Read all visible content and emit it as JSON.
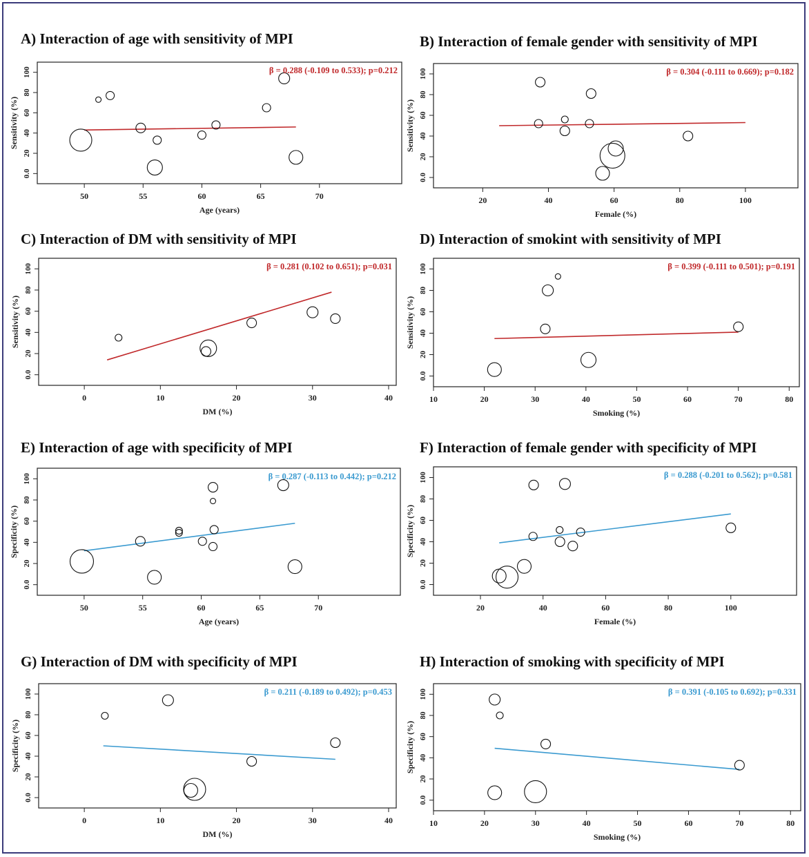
{
  "chart_data": [
    {
      "id": "A",
      "type": "scatter",
      "title": "A) Interaction of age with sensitivity of MPI",
      "xlabel": "Age (years)",
      "ylabel": "Sensitivity (%)",
      "xlim": [
        46,
        77
      ],
      "ylim": [
        -10,
        110
      ],
      "xticks": [
        50,
        55,
        60,
        65,
        70
      ],
      "xtick_labels": [
        "50",
        "55",
        "60",
        "65",
        "70"
      ],
      "yticks": [
        0,
        20,
        40,
        60,
        80,
        100
      ],
      "ytick_labels": [
        "0.0",
        "20",
        "40",
        "60",
        "80",
        "100"
      ],
      "annotation": "β = 0.288 (-0.109 to 0.533); p=0.212",
      "line_color": "#c0282a",
      "fit_line": {
        "x": [
          50,
          68
        ],
        "y": [
          43,
          46
        ]
      },
      "points": [
        {
          "x": 49.7,
          "y": 33,
          "r": 16
        },
        {
          "x": 51.2,
          "y": 73,
          "r": 4
        },
        {
          "x": 52.2,
          "y": 77,
          "r": 6
        },
        {
          "x": 54.8,
          "y": 45,
          "r": 7
        },
        {
          "x": 56.0,
          "y": 6,
          "r": 11
        },
        {
          "x": 56.2,
          "y": 33,
          "r": 6
        },
        {
          "x": 60.0,
          "y": 38,
          "r": 6
        },
        {
          "x": 61.2,
          "y": 48,
          "r": 6
        },
        {
          "x": 65.5,
          "y": 65,
          "r": 6
        },
        {
          "x": 67.0,
          "y": 94,
          "r": 8
        },
        {
          "x": 68.0,
          "y": 16,
          "r": 10
        }
      ]
    },
    {
      "id": "B",
      "type": "scatter",
      "title": "B) Interaction of female gender with sensitivity of MPI",
      "xlabel": "Female (%)",
      "ylabel": "Sensitivity (%)",
      "xlim": [
        5,
        116
      ],
      "ylim": [
        -10,
        110
      ],
      "xticks": [
        20,
        40,
        60,
        80,
        100
      ],
      "xtick_labels": [
        "20",
        "40",
        "60",
        "80",
        "100"
      ],
      "yticks": [
        0,
        20,
        40,
        60,
        80,
        100
      ],
      "ytick_labels": [
        "0.0",
        "20",
        "40",
        "60",
        "80",
        "100"
      ],
      "annotation": "β = 0.304 (-0.111 to 0.669); p=0.182",
      "line_color": "#c0282a",
      "fit_line": {
        "x": [
          25,
          100
        ],
        "y": [
          50,
          53
        ]
      },
      "points": [
        {
          "x": 37.5,
          "y": 92,
          "r": 7
        },
        {
          "x": 37.0,
          "y": 52,
          "r": 6
        },
        {
          "x": 45.0,
          "y": 56,
          "r": 5
        },
        {
          "x": 45.0,
          "y": 45,
          "r": 7
        },
        {
          "x": 53.0,
          "y": 81,
          "r": 7
        },
        {
          "x": 52.5,
          "y": 52,
          "r": 6
        },
        {
          "x": 59.5,
          "y": 21,
          "r": 18
        },
        {
          "x": 60.5,
          "y": 28,
          "r": 11
        },
        {
          "x": 56.5,
          "y": 4,
          "r": 10
        },
        {
          "x": 82.5,
          "y": 40,
          "r": 7
        }
      ]
    },
    {
      "id": "C",
      "type": "scatter",
      "title": "C) Interaction of DM with sensitivity of MPI",
      "xlabel": "DM (%)",
      "ylabel": "Sensitivity (%)",
      "xlim": [
        -6,
        41
      ],
      "ylim": [
        -10,
        110
      ],
      "xticks": [
        0,
        10,
        20,
        30,
        40
      ],
      "xtick_labels": [
        "0",
        "10",
        "20",
        "30",
        "40"
      ],
      "yticks": [
        0,
        20,
        40,
        60,
        80,
        100
      ],
      "ytick_labels": [
        "0.0",
        "20",
        "40",
        "60",
        "80",
        "100"
      ],
      "annotation": "β = 0.281 (0.102 to 0.651); p=0.031",
      "line_color": "#c0282a",
      "fit_line": {
        "x": [
          3,
          32.5
        ],
        "y": [
          14,
          78
        ]
      },
      "points": [
        {
          "x": 4.5,
          "y": 35,
          "r": 5
        },
        {
          "x": 16.3,
          "y": 25,
          "r": 12
        },
        {
          "x": 16.0,
          "y": 22,
          "r": 7
        },
        {
          "x": 22.0,
          "y": 49,
          "r": 7
        },
        {
          "x": 30.0,
          "y": 59,
          "r": 8
        },
        {
          "x": 33.0,
          "y": 53,
          "r": 7
        }
      ]
    },
    {
      "id": "D",
      "type": "scatter",
      "title": "D) Interaction of smokint with sensitivity of MPI",
      "xlabel": "Smoking (%)",
      "ylabel": "Sensitivity (%)",
      "xlim": [
        10,
        82
      ],
      "ylim": [
        -10,
        110
      ],
      "xticks": [
        10,
        20,
        30,
        40,
        50,
        60,
        70,
        80
      ],
      "xtick_labels": [
        "10",
        "20",
        "30",
        "40",
        "50",
        "60",
        "70",
        "80"
      ],
      "yticks": [
        0,
        20,
        40,
        60,
        80,
        100
      ],
      "ytick_labels": [
        "0.0",
        "20",
        "40",
        "60",
        "80",
        "100"
      ],
      "annotation": "β = 0.399 (-0.111 to 0.501); p=0.191",
      "line_color": "#c0282a",
      "fit_line": {
        "x": [
          22,
          70
        ],
        "y": [
          35,
          41
        ]
      },
      "points": [
        {
          "x": 34.5,
          "y": 93,
          "r": 4
        },
        {
          "x": 32.5,
          "y": 80,
          "r": 8
        },
        {
          "x": 32.0,
          "y": 44,
          "r": 7
        },
        {
          "x": 22.0,
          "y": 6,
          "r": 10
        },
        {
          "x": 40.5,
          "y": 15,
          "r": 11
        },
        {
          "x": 70.0,
          "y": 46,
          "r": 7
        }
      ]
    },
    {
      "id": "E",
      "type": "scatter",
      "title": "E) Interaction of age with specificity of MPI",
      "xlabel": "Age (years)",
      "ylabel": "Specificity (%)",
      "xlim": [
        46,
        77
      ],
      "ylim": [
        -10,
        110
      ],
      "xticks": [
        50,
        55,
        60,
        65,
        70
      ],
      "xtick_labels": [
        "50",
        "55",
        "60",
        "65",
        "70"
      ],
      "yticks": [
        0,
        20,
        40,
        60,
        80,
        100
      ],
      "ytick_labels": [
        "0.0",
        "20",
        "40",
        "60",
        "80",
        "100"
      ],
      "annotation": "β = 0.287 (-0.113 to 0.442); p=0.212",
      "line_color": "#3a9ad0",
      "fit_line": {
        "x": [
          50,
          68
        ],
        "y": [
          32,
          58
        ]
      },
      "points": [
        {
          "x": 49.8,
          "y": 22,
          "r": 17
        },
        {
          "x": 54.8,
          "y": 41,
          "r": 7
        },
        {
          "x": 56.0,
          "y": 7,
          "r": 10
        },
        {
          "x": 58.1,
          "y": 51,
          "r": 5
        },
        {
          "x": 58.1,
          "y": 49,
          "r": 5
        },
        {
          "x": 60.1,
          "y": 41,
          "r": 6
        },
        {
          "x": 61.0,
          "y": 92,
          "r": 7
        },
        {
          "x": 61.0,
          "y": 79,
          "r": 4
        },
        {
          "x": 61.1,
          "y": 52,
          "r": 6
        },
        {
          "x": 61.0,
          "y": 36,
          "r": 6
        },
        {
          "x": 67.0,
          "y": 94,
          "r": 8
        },
        {
          "x": 68.0,
          "y": 17,
          "r": 10
        }
      ]
    },
    {
      "id": "F",
      "type": "scatter",
      "title": "F) Interaction of female gender with specificity of MPI",
      "xlabel": "Female (%)",
      "ylabel": "Specificity (%)",
      "xlim": [
        5,
        121
      ],
      "ylim": [
        -10,
        110
      ],
      "xticks": [
        20,
        40,
        60,
        80,
        100
      ],
      "xtick_labels": [
        "20",
        "40",
        "60",
        "80",
        "100"
      ],
      "yticks": [
        0,
        20,
        40,
        60,
        80,
        100
      ],
      "ytick_labels": [
        "0.0",
        "20",
        "40",
        "60",
        "80",
        "100"
      ],
      "annotation": "β = 0.288 (-0.201 to 0.562); p=0.581",
      "line_color": "#3a9ad0",
      "fit_line": {
        "x": [
          26,
          100
        ],
        "y": [
          39,
          66
        ]
      },
      "points": [
        {
          "x": 37.0,
          "y": 93,
          "r": 7
        },
        {
          "x": 47.0,
          "y": 94,
          "r": 8
        },
        {
          "x": 36.8,
          "y": 45,
          "r": 6
        },
        {
          "x": 45.3,
          "y": 51,
          "r": 5
        },
        {
          "x": 45.4,
          "y": 40,
          "r": 7
        },
        {
          "x": 52.0,
          "y": 49,
          "r": 6
        },
        {
          "x": 49.5,
          "y": 36,
          "r": 7
        },
        {
          "x": 26.0,
          "y": 8,
          "r": 10
        },
        {
          "x": 28.5,
          "y": 7,
          "r": 16
        },
        {
          "x": 34.0,
          "y": 17,
          "r": 10
        },
        {
          "x": 100.0,
          "y": 53,
          "r": 7
        }
      ]
    },
    {
      "id": "G",
      "type": "scatter",
      "title": "G) Interaction of DM with specificity of MPI",
      "xlabel": "DM (%)",
      "ylabel": "Specificity (%)",
      "xlim": [
        -6,
        41
      ],
      "ylim": [
        -10,
        110
      ],
      "xticks": [
        0,
        10,
        20,
        30,
        40
      ],
      "xtick_labels": [
        "0",
        "10",
        "20",
        "30",
        "40"
      ],
      "yticks": [
        0,
        20,
        40,
        60,
        80,
        100
      ],
      "ytick_labels": [
        "0.0",
        "20",
        "40",
        "60",
        "80",
        "100"
      ],
      "annotation": "β = 0.211 (-0.189 to 0.492); p=0.453",
      "line_color": "#3a9ad0",
      "fit_line": {
        "x": [
          2.5,
          33
        ],
        "y": [
          50,
          37
        ]
      },
      "points": [
        {
          "x": 2.7,
          "y": 79,
          "r": 5
        },
        {
          "x": 11.0,
          "y": 94,
          "r": 8
        },
        {
          "x": 14.5,
          "y": 8,
          "r": 16
        },
        {
          "x": 14.0,
          "y": 7,
          "r": 10
        },
        {
          "x": 22.0,
          "y": 35,
          "r": 7
        },
        {
          "x": 33.0,
          "y": 53,
          "r": 7
        }
      ]
    },
    {
      "id": "H",
      "type": "scatter",
      "title": "H) Interaction of smoking with specificity of MPI",
      "xlabel": "Smoking (%)",
      "ylabel": "Specificity (%)",
      "xlim": [
        10,
        82
      ],
      "ylim": [
        -10,
        110
      ],
      "xticks": [
        10,
        20,
        30,
        40,
        50,
        60,
        70,
        80
      ],
      "xtick_labels": [
        "10",
        "20",
        "30",
        "40",
        "50",
        "60",
        "70",
        "80"
      ],
      "yticks": [
        0,
        20,
        40,
        60,
        80,
        100
      ],
      "ytick_labels": [
        "0.0",
        "20",
        "40",
        "60",
        "80",
        "100"
      ],
      "annotation": "β = 0.391 (-0.105 to 0.692); p=0.331",
      "line_color": "#3a9ad0",
      "fit_line": {
        "x": [
          22,
          70
        ],
        "y": [
          49,
          29
        ]
      },
      "points": [
        {
          "x": 22.0,
          "y": 95,
          "r": 8
        },
        {
          "x": 23.0,
          "y": 80,
          "r": 5
        },
        {
          "x": 32.0,
          "y": 53,
          "r": 7
        },
        {
          "x": 22.0,
          "y": 7,
          "r": 10
        },
        {
          "x": 30.0,
          "y": 8,
          "r": 16
        },
        {
          "x": 70.0,
          "y": 33,
          "r": 7
        }
      ]
    }
  ]
}
